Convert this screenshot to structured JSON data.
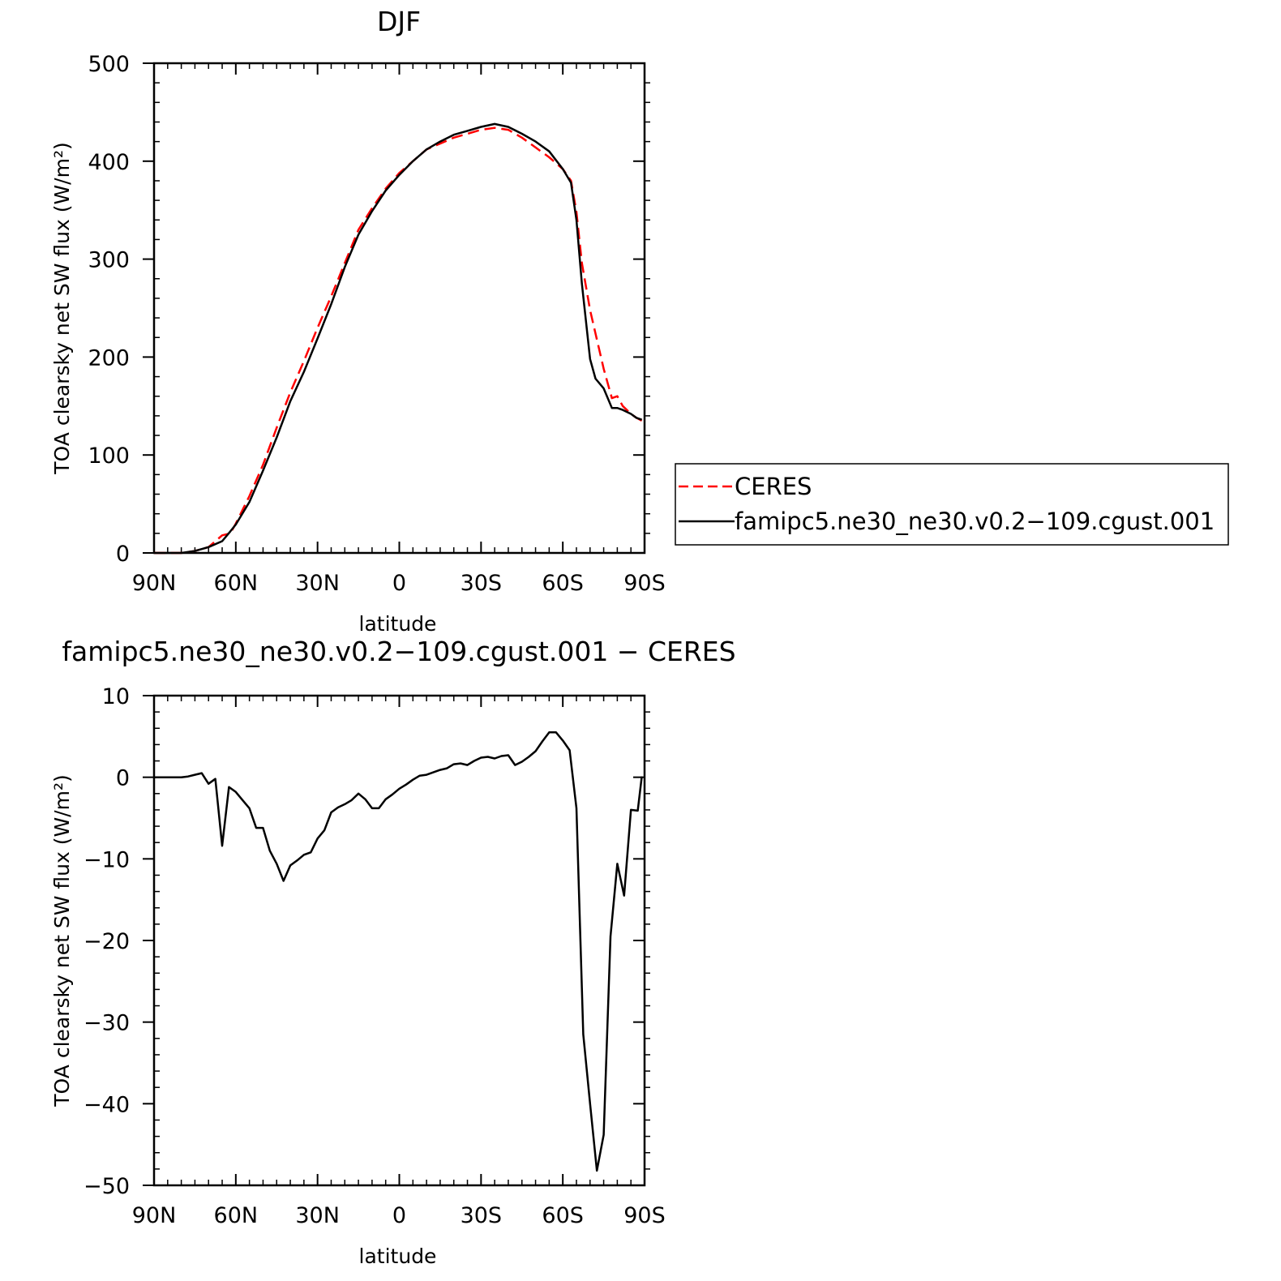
{
  "chart_data": [
    {
      "type": "line",
      "title": "DJF",
      "xlabel": "latitude",
      "ylabel": "TOA clearsky net SW flux (W/m²)",
      "xlim": [
        -90,
        90
      ],
      "ylim": [
        0,
        500
      ],
      "x_major_ticks": [
        -90,
        -60,
        -30,
        0,
        30,
        60,
        90
      ],
      "x_tick_labels": [
        "90N",
        "60N",
        "30N",
        "0",
        "30S",
        "60S",
        "90S"
      ],
      "y_major_ticks": [
        0,
        100,
        200,
        300,
        400,
        500
      ],
      "y_tick_labels": [
        "0",
        "100",
        "200",
        "300",
        "400",
        "500"
      ],
      "legend_position": "right",
      "series": [
        {
          "name": "CERES",
          "color": "#ff0000",
          "dash": "dashed",
          "x": [
            -90,
            -85,
            -80,
            -75,
            -70,
            -65,
            -62,
            -60,
            -55,
            -50,
            -45,
            -40,
            -35,
            -30,
            -25,
            -20,
            -15,
            -10,
            -5,
            0,
            5,
            10,
            15,
            20,
            25,
            30,
            35,
            40,
            45,
            50,
            55,
            60,
            63,
            65,
            67,
            70,
            72,
            75,
            78,
            80,
            82,
            85,
            87,
            89
          ],
          "y": [
            0,
            0,
            0,
            2,
            6,
            18,
            20,
            30,
            58,
            90,
            128,
            164,
            196,
            230,
            262,
            296,
            330,
            352,
            372,
            388,
            400,
            412,
            418,
            424,
            428,
            432,
            434,
            432,
            424,
            414,
            404,
            392,
            380,
            348,
            296,
            248,
            224,
            188,
            158,
            160,
            150,
            142,
            138,
            135
          ]
        },
        {
          "name": "famipc5.ne30_ne30.v0.2−109.cgust.001",
          "color": "#000000",
          "dash": "solid",
          "x": [
            -90,
            -85,
            -80,
            -75,
            -70,
            -65,
            -62,
            -60,
            -55,
            -50,
            -45,
            -40,
            -35,
            -30,
            -25,
            -20,
            -15,
            -10,
            -5,
            0,
            5,
            10,
            15,
            20,
            25,
            30,
            35,
            40,
            45,
            50,
            55,
            60,
            63,
            65,
            67,
            70,
            72,
            75,
            78,
            80,
            82,
            85,
            87,
            89
          ],
          "y": [
            0,
            0,
            0,
            2,
            6,
            12,
            22,
            29,
            52,
            84,
            118,
            155,
            185,
            219,
            254,
            292,
            325,
            349,
            370,
            386,
            400,
            412,
            420,
            427,
            431,
            435,
            438,
            435,
            428,
            420,
            410,
            392,
            378,
            340,
            275,
            198,
            178,
            168,
            148,
            148,
            146,
            142,
            138,
            136
          ]
        }
      ]
    },
    {
      "type": "line",
      "title": "famipc5.ne30_ne30.v0.2−109.cgust.001 − CERES",
      "xlabel": "latitude",
      "ylabel": "TOA clearsky net SW flux (W/m²)",
      "xlim": [
        -90,
        90
      ],
      "ylim": [
        -50,
        10
      ],
      "x_major_ticks": [
        -90,
        -60,
        -30,
        0,
        30,
        60,
        90
      ],
      "x_tick_labels": [
        "90N",
        "60N",
        "30N",
        "0",
        "30S",
        "60S",
        "90S"
      ],
      "y_major_ticks": [
        -50,
        -40,
        -30,
        -20,
        -10,
        0,
        10
      ],
      "y_tick_labels": [
        "−50",
        "−40",
        "−30",
        "−20",
        "−10",
        "0",
        "10"
      ],
      "series": [
        {
          "color": "#000000",
          "dash": "solid",
          "x": [
            -90,
            -87.5,
            -85,
            -82.5,
            -80,
            -77.5,
            -75,
            -72.5,
            -70,
            -67.5,
            -65,
            -62.5,
            -60,
            -57.5,
            -55,
            -52.5,
            -50,
            -47.5,
            -45,
            -42.5,
            -40,
            -37.5,
            -35,
            -32.5,
            -30,
            -27.5,
            -25,
            -22.5,
            -20,
            -17.5,
            -15,
            -12.5,
            -10,
            -7.5,
            -5,
            -2.5,
            0,
            2.5,
            5,
            7.5,
            10,
            12.5,
            15,
            17.5,
            20,
            22.5,
            25,
            27.5,
            30,
            32.5,
            35,
            37.5,
            40,
            42.5,
            45,
            47.5,
            50,
            52.5,
            55,
            57.5,
            60,
            62.5,
            65,
            67.5,
            70,
            72.5,
            75,
            77.5,
            80,
            82.5,
            85,
            87.5,
            89
          ],
          "y": [
            0,
            0,
            0,
            0,
            0,
            0.1,
            0.3,
            0.5,
            -0.8,
            -0.2,
            -8.4,
            -1.2,
            -1.8,
            -2.8,
            -3.8,
            -6.2,
            -6.2,
            -9.0,
            -10.6,
            -12.7,
            -10.8,
            -10.2,
            -9.5,
            -9.2,
            -7.5,
            -6.5,
            -4.3,
            -3.7,
            -3.3,
            -2.8,
            -2.0,
            -2.7,
            -3.8,
            -3.8,
            -2.7,
            -2.1,
            -1.4,
            -0.9,
            -0.3,
            0.2,
            0.3,
            0.6,
            0.9,
            1.1,
            1.6,
            1.7,
            1.5,
            2.0,
            2.4,
            2.5,
            2.3,
            2.6,
            2.7,
            1.5,
            1.9,
            2.5,
            3.2,
            4.4,
            5.5,
            5.5,
            4.5,
            3.3,
            -3.8,
            -31.5,
            -40.0,
            -48.2,
            -43.8,
            -19.5,
            -10.6,
            -14.5,
            -4.0,
            -4.1,
            0.1
          ]
        }
      ]
    }
  ]
}
